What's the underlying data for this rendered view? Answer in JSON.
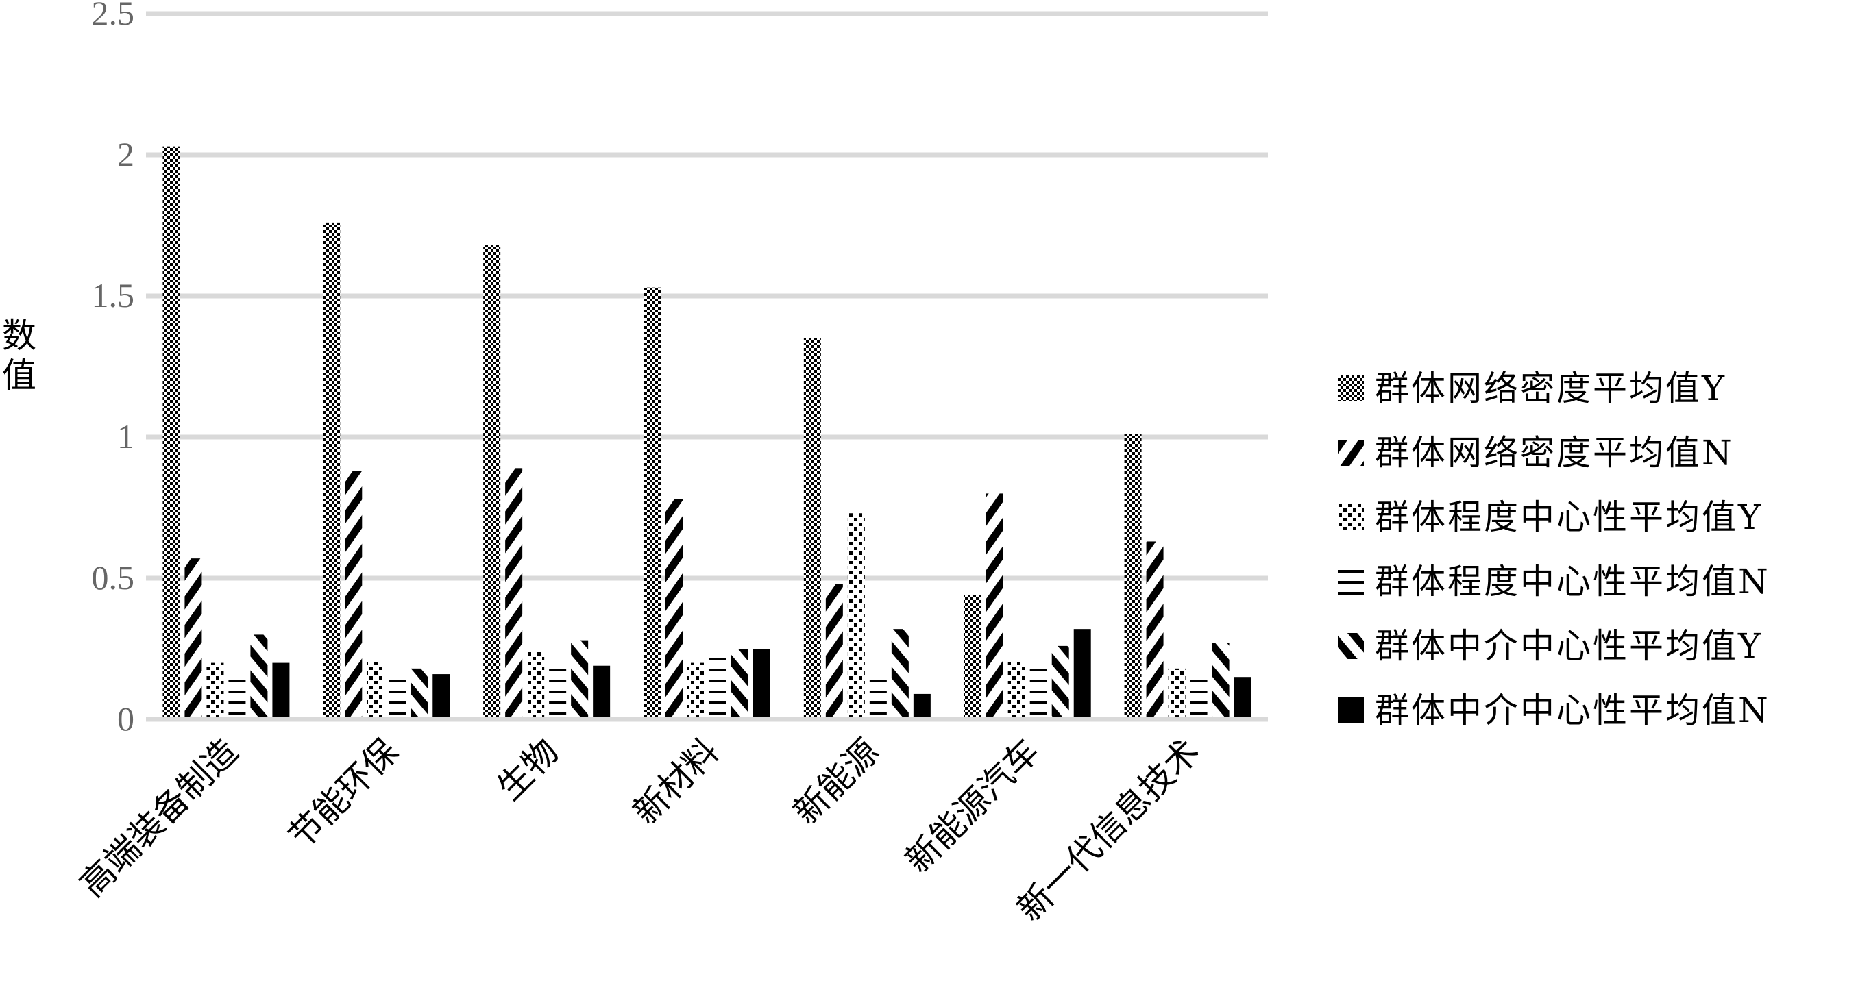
{
  "chart_data": {
    "type": "bar",
    "title": "",
    "xlabel": "",
    "ylabel": "数值",
    "ylim": [
      0,
      2.5
    ],
    "yticks": [
      "0",
      "0.5",
      "1",
      "1.5",
      "2",
      "2.5"
    ],
    "ytick_values": [
      0,
      0.5,
      1,
      1.5,
      2,
      2.5
    ],
    "grid": true,
    "legend_position": "right",
    "categories": [
      "高端装备制造",
      "节能环保",
      "生物",
      "新材料",
      "新能源",
      "新能源汽车",
      "新一代信息技术"
    ],
    "series": [
      {
        "name": "群体网络密度平均值Y",
        "pattern": "checker",
        "values": [
          2.03,
          1.76,
          1.68,
          1.53,
          1.35,
          0.44,
          1.01
        ]
      },
      {
        "name": "群体网络密度平均值N",
        "pattern": "diag-up",
        "values": [
          0.57,
          0.88,
          0.89,
          0.78,
          0.48,
          0.8,
          0.63
        ]
      },
      {
        "name": "群体程度中心性平均值Y",
        "pattern": "dots",
        "values": [
          0.2,
          0.21,
          0.24,
          0.2,
          0.73,
          0.21,
          0.18
        ]
      },
      {
        "name": "群体程度中心性平均值N",
        "pattern": "hlines",
        "values": [
          0.17,
          0.17,
          0.19,
          0.22,
          0.16,
          0.18,
          0.17
        ]
      },
      {
        "name": "群体中介中心性平均值Y",
        "pattern": "diag-down",
        "values": [
          0.3,
          0.18,
          0.28,
          0.25,
          0.32,
          0.26,
          0.27
        ]
      },
      {
        "name": "群体中介中心性平均值N",
        "pattern": "solid",
        "values": [
          0.2,
          0.16,
          0.19,
          0.25,
          0.09,
          0.32,
          0.15
        ]
      }
    ],
    "colors": {
      "gridline": "#d9d9d9",
      "bar": "#000000",
      "tick_text": "#666666"
    }
  }
}
